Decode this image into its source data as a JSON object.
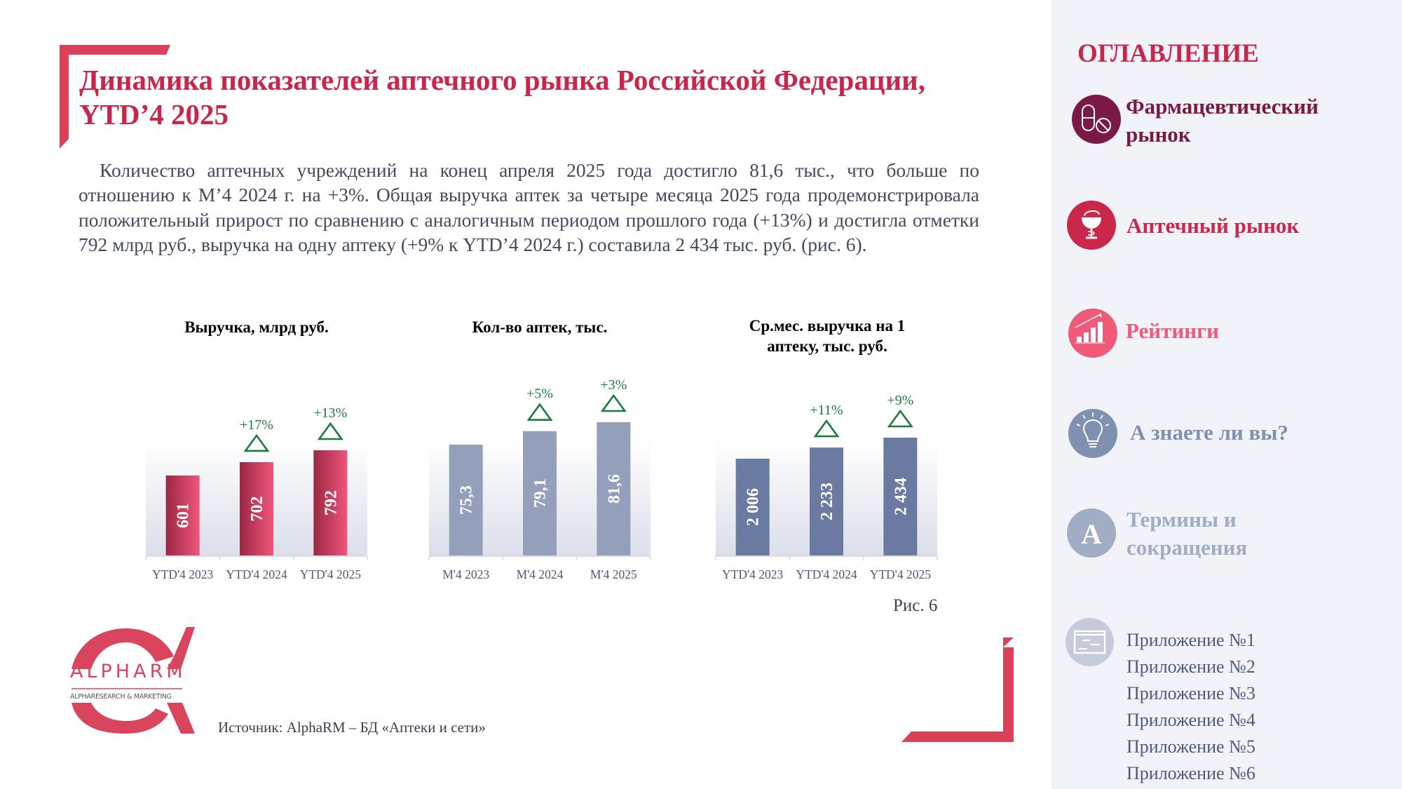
{
  "header": {
    "title_line1": "Динамика показателей аптечного рынка Российской Федерации,",
    "title_line2": "YTD’4 2025"
  },
  "intro_text": "Количество аптечных учреждений на конец апреля 2025 года достигло 81,6 тыс., что больше по отношению к М’4 2024 г. на +3%. Общая выручка аптек за четыре месяца 2025 года продемонстрировала положительный прирост по сравнению с аналогичным периодом прошлого года (+13%) и достигла отметки 792 млрд руб., выручка на одну аптеку (+9% к YTD’4 2024 г.) составила 2 434 тыс. руб. (рис. 6).",
  "chart_data": [
    {
      "type": "bar",
      "title": "Выручка, млрд руб.",
      "categories": [
        "YTD'4 2023",
        "YTD'4 2024",
        "YTD'4 2025"
      ],
      "values": [
        601,
        702,
        792
      ],
      "value_labels": [
        "601",
        "702",
        "792"
      ],
      "growth_labels": [
        "",
        "+17%",
        "+13%"
      ],
      "ylim": [
        0,
        1000
      ],
      "grid": false,
      "bar_color_start": "#9b2744",
      "bar_color_end": "#f0567a",
      "title_color": "#c8264a"
    },
    {
      "type": "bar",
      "title": "Кол-во аптек, тыс.",
      "categories": [
        "M'4 2023",
        "M'4 2024",
        "M'4 2025"
      ],
      "values": [
        75.3,
        79.1,
        81.6
      ],
      "value_labels": [
        "75,3",
        "79,1",
        "81,6"
      ],
      "growth_labels": [
        "",
        "+5%",
        "+3%"
      ],
      "ylim": [
        0,
        95
      ],
      "grid": false,
      "bar_color_start": "#94a0bb",
      "bar_color_end": "#94a0bb",
      "title_color": "#4e5878"
    },
    {
      "type": "bar",
      "title": "Ср.мес. выручка на 1 аптеку, тыс. руб.",
      "title_lines": [
        "Ср.мес. выручка на 1",
        "аптеку, тыс. руб."
      ],
      "categories": [
        "YTD'4 2023",
        "YTD'4 2024",
        "YTD'4 2025"
      ],
      "values": [
        2006,
        2233,
        2434
      ],
      "value_labels": [
        "2 006",
        "2 233",
        "2 434"
      ],
      "growth_labels": [
        "",
        "+11%",
        "+9%"
      ],
      "ylim": [
        0,
        3500
      ],
      "grid": false,
      "bar_color_start": "#6b7aa0",
      "bar_color_end": "#6b7aa0",
      "title_color": "#3d4560"
    }
  ],
  "figure_caption": "Рис. 6",
  "source_text": "Источник: AlphaRM – БД «Аптеки и сети»",
  "logo": {
    "name": "ALPHARM",
    "tagline": "ALPHARESEARCH & MARKETING"
  },
  "toc": {
    "title": "ОГЛАВЛЕНИЕ",
    "items": [
      {
        "label_line1": "Фармацевтический",
        "label_line2": "рынок",
        "icon": "pills-icon",
        "color": "#7a1a44"
      },
      {
        "label_line1": "Аптечный рынок",
        "label_line2": "",
        "icon": "pharmacy-bowl-icon",
        "color": "#c9284a"
      },
      {
        "label_line1": "Рейтинги",
        "label_line2": "",
        "icon": "growth-chart-icon",
        "color": "#ef5a78"
      },
      {
        "label_line1": "А знаете ли вы?",
        "label_line2": "",
        "icon": "lightbulb-icon",
        "color": "#8090b0"
      },
      {
        "label_line1": "Термины и",
        "label_line2": "сокращения",
        "icon": "letter-a-icon",
        "color": "#a0adc5"
      }
    ],
    "appendix_icon": "document-icon",
    "appendix_color": "#c5cbdb",
    "appendices": [
      "Приложение №1",
      "Приложение №2",
      "Приложение №3",
      "Приложение №4",
      "Приложение №5",
      "Приложение №6"
    ]
  }
}
